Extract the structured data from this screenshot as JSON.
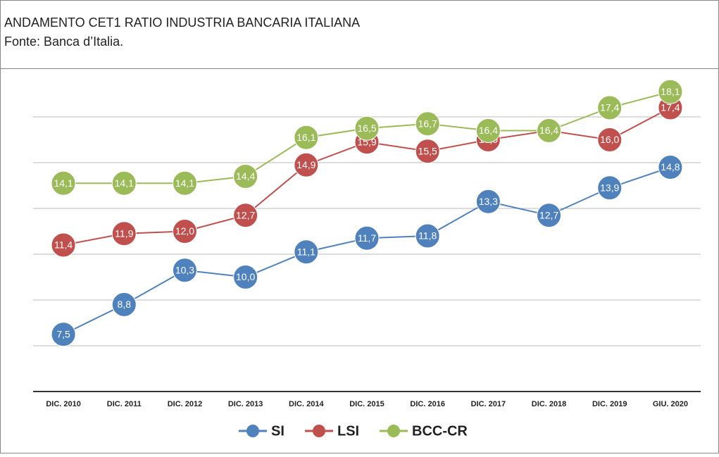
{
  "chart_data": {
    "type": "line",
    "title": "ANDAMENTO CET1 RATIO INDUSTRIA BANCARIA ITALIANA",
    "subtitle": "Fonte: Banca d’Italia.",
    "categories": [
      "DIC. 2010",
      "DIC. 2011",
      "DIC. 2012",
      "DIC. 2013",
      "DIC. 2014",
      "DIC. 2015",
      "DIC. 2016",
      "DIC. 2017",
      "DIC. 2018",
      "DIC. 2019",
      "GIU. 2020"
    ],
    "series": [
      {
        "name": "SI",
        "color": "#4f81bd",
        "values": [
          7.5,
          8.8,
          10.3,
          10.0,
          11.1,
          11.7,
          11.8,
          13.3,
          12.7,
          13.9,
          14.8
        ],
        "value_labels": [
          "7,5",
          "8,8",
          "10,3",
          "10,0",
          "11,1",
          "11,7",
          "11,8",
          "13,3",
          "12,7",
          "13,9",
          "14,8"
        ]
      },
      {
        "name": "LSI",
        "color": "#c0504d",
        "values": [
          11.4,
          11.9,
          12.0,
          12.7,
          14.9,
          15.9,
          15.5,
          16.0,
          16.4,
          16.0,
          17.4
        ],
        "value_labels": [
          "11,4",
          "11,9",
          "12,0",
          "12,7",
          "14,9",
          "15,9",
          "15,5",
          "16,0",
          "16,4",
          "16,0",
          "17,4"
        ]
      },
      {
        "name": "BCC-CR",
        "color": "#9bbb59",
        "values": [
          14.1,
          14.1,
          14.1,
          14.4,
          16.1,
          16.5,
          16.7,
          16.4,
          16.4,
          17.4,
          18.1
        ],
        "value_labels": [
          "14,1",
          "14,1",
          "14,1",
          "14,4",
          "16,1",
          "16,5",
          "16,7",
          "16,4",
          "16,4",
          "17,4",
          "18,1"
        ]
      }
    ],
    "ylim": [
      5,
      19
    ],
    "yticks": [
      7,
      9,
      11,
      13,
      15,
      17
    ],
    "grid": true,
    "legend": "bottom"
  }
}
